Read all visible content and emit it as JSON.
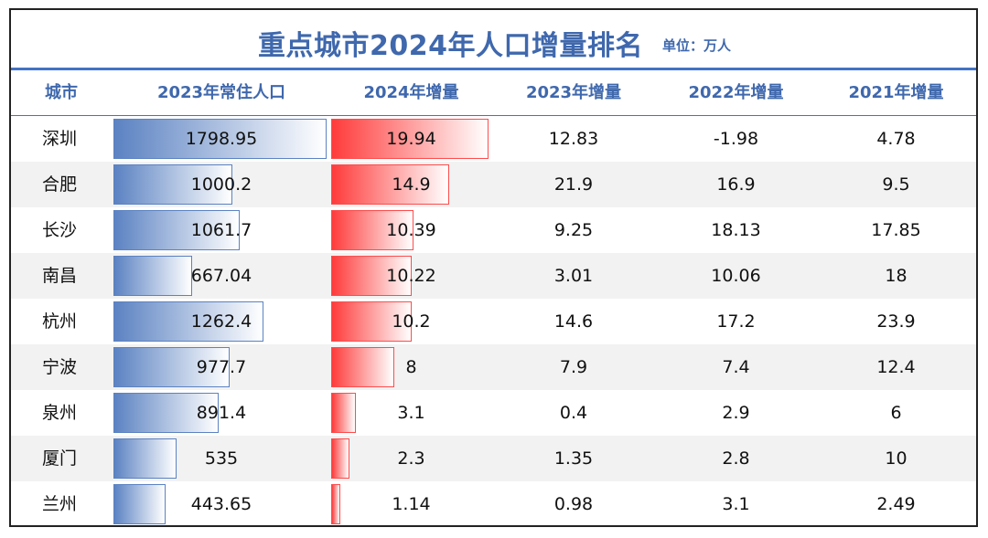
{
  "title": "重点城市2024年人口增量排名",
  "unit": "单位：万人",
  "colors": {
    "accent": "#3f68ad",
    "blue_bar": "#5b82c2",
    "red_bar": "#ff3b3b",
    "stripe": "#f2f2f2"
  },
  "columns": [
    "城市",
    "2023年常住人口",
    "2024年增量",
    "2023年增量",
    "2022年增量",
    "2021年增量"
  ],
  "rows": [
    {
      "city": "深圳",
      "pop2023": "1798.95",
      "inc2024": "19.94",
      "inc2023": "12.83",
      "inc2022": "-1.98",
      "inc2021": "4.78"
    },
    {
      "city": "合肥",
      "pop2023": "1000.2",
      "inc2024": "14.9",
      "inc2023": "21.9",
      "inc2022": "16.9",
      "inc2021": "9.5"
    },
    {
      "city": "长沙",
      "pop2023": "1061.7",
      "inc2024": "10.39",
      "inc2023": "9.25",
      "inc2022": "18.13",
      "inc2021": "17.85"
    },
    {
      "city": "南昌",
      "pop2023": "667.04",
      "inc2024": "10.22",
      "inc2023": "3.01",
      "inc2022": "10.06",
      "inc2021": "18"
    },
    {
      "city": "杭州",
      "pop2023": "1262.4",
      "inc2024": "10.2",
      "inc2023": "14.6",
      "inc2022": "17.2",
      "inc2021": "23.9"
    },
    {
      "city": "宁波",
      "pop2023": "977.7",
      "inc2024": "8",
      "inc2023": "7.9",
      "inc2022": "7.4",
      "inc2021": "12.4"
    },
    {
      "city": "泉州",
      "pop2023": "891.4",
      "inc2024": "3.1",
      "inc2023": "0.4",
      "inc2022": "2.9",
      "inc2021": "6"
    },
    {
      "city": "厦门",
      "pop2023": "535",
      "inc2024": "2.3",
      "inc2023": "1.35",
      "inc2022": "2.8",
      "inc2021": "10"
    },
    {
      "city": "兰州",
      "pop2023": "443.65",
      "inc2024": "1.14",
      "inc2023": "0.98",
      "inc2022": "3.1",
      "inc2021": "2.49"
    }
  ]
}
